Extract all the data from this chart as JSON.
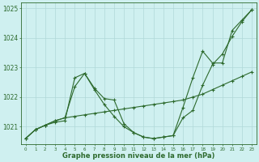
{
  "x": [
    0,
    1,
    2,
    3,
    4,
    5,
    6,
    7,
    8,
    9,
    10,
    11,
    12,
    13,
    14,
    15,
    16,
    17,
    18,
    19,
    20,
    21,
    22,
    23
  ],
  "series1": [
    1020.6,
    1020.9,
    1021.05,
    1021.15,
    1021.2,
    1022.65,
    1022.8,
    1022.25,
    1021.75,
    1021.35,
    1021.0,
    1020.8,
    1020.65,
    1020.6,
    1020.65,
    1020.7,
    1021.3,
    1021.55,
    1022.4,
    1023.1,
    1023.45,
    1024.05,
    1024.55,
    1024.95
  ],
  "series2": [
    1020.6,
    1020.9,
    1021.05,
    1021.2,
    1021.3,
    1021.35,
    1021.4,
    1021.45,
    1021.5,
    1021.55,
    1021.6,
    1021.65,
    1021.7,
    1021.75,
    1021.8,
    1021.85,
    1021.9,
    1022.0,
    1022.1,
    1022.25,
    1022.4,
    1022.55,
    1022.7,
    1022.85
  ],
  "series3": [
    1020.6,
    1020.9,
    1021.05,
    1021.2,
    1021.3,
    1022.35,
    1022.8,
    1022.3,
    1021.95,
    1021.9,
    1021.1,
    1020.8,
    1020.65,
    1020.6,
    1020.65,
    1020.7,
    1021.65,
    1022.65,
    1023.55,
    1023.15,
    1023.15,
    1024.25,
    1024.6,
    1024.95
  ],
  "ylim": [
    1020.4,
    1025.2
  ],
  "yticks": [
    1021,
    1022,
    1023,
    1024,
    1025
  ],
  "xticks": [
    0,
    1,
    2,
    3,
    4,
    5,
    6,
    7,
    8,
    9,
    10,
    11,
    12,
    13,
    14,
    15,
    16,
    17,
    18,
    19,
    20,
    21,
    22,
    23
  ],
  "xlabel": "Graphe pression niveau de la mer (hPa)",
  "line_color": "#2d6a2d",
  "bg_color": "#cff0f0",
  "grid_color": "#b0d8d8",
  "marker": "+",
  "markersize": 3,
  "linewidth": 0.8,
  "figsize": [
    3.2,
    2.0
  ],
  "dpi": 100
}
